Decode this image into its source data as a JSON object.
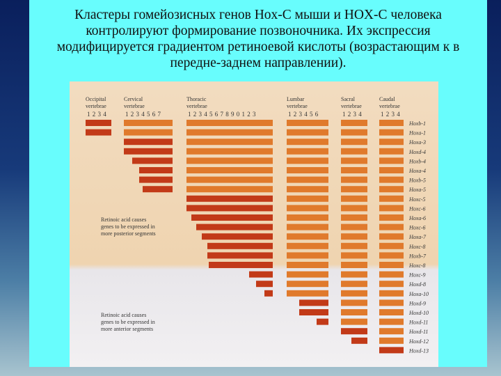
{
  "title_lines": [
    "Кластеры гомейозисных генов Hox-C мыши и HOX-C человека",
    "контролируют формирование  позвоночника. Их экспрессия",
    "модифицируется градиентом ретиноевой кислоты (возрастающим к в",
    "передне-заднем направлении)."
  ],
  "figure": {
    "regions": [
      {
        "name": "Occipital",
        "subtitle": "vertebrae",
        "numbers": "1 2 3 4"
      },
      {
        "name": "Cervical",
        "subtitle": "vertebrae",
        "numbers": "1 2 3 4 5 6 7"
      },
      {
        "name": "Thoracic",
        "subtitle": "vertebrae",
        "numbers": "1 2 3 4 5 6 7 8 9 0 1 2 3"
      },
      {
        "name": "Lumbar",
        "subtitle": "vertebrae",
        "numbers": "1 2 3 4 5 6"
      },
      {
        "name": "Sacral",
        "subtitle": "vertebrae",
        "numbers": "1 2 3 4"
      },
      {
        "name": "Caudal",
        "subtitle": "vertebrae",
        "numbers": "1 2 3 4"
      }
    ],
    "genes": [
      "Hoxb-1",
      "Hoxa-1",
      "Hoxa-3",
      "Hoxd-4",
      "Hoxb-4",
      "Hoxa-4",
      "Hoxb-5",
      "Hoxa-5",
      "Hoxc-5",
      "Hoxc-6",
      "Hoxa-6",
      "Hoxc-6",
      "Hoxa-7",
      "Hoxc-8",
      "Hoxb-7",
      "Hoxc-8",
      "Hoxc-9",
      "Hoxd-8",
      "Hoxa-10",
      "Hoxd-9",
      "Hoxd-10",
      "Hoxd-11",
      "Hoxd-11",
      "Hoxd-12",
      "Hoxd-13"
    ],
    "notes": [
      [
        "Retinoic acid causes",
        "genes to be expressed in",
        "more posterior segments"
      ],
      [
        "Retinoic acid causes",
        "genes to be expressed in",
        "more anterior segments"
      ]
    ]
  }
}
